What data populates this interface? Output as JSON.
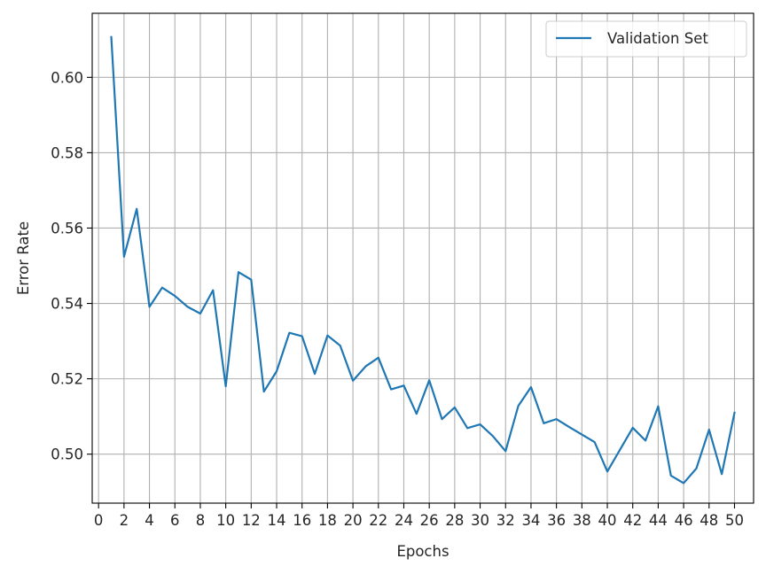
{
  "chart_data": {
    "type": "line",
    "xlabel": "Epochs",
    "ylabel": "Error Rate",
    "xlim": [
      -0.5,
      51.5
    ],
    "ylim": [
      0.487,
      0.617
    ],
    "xticks": [
      0,
      2,
      4,
      6,
      8,
      10,
      12,
      14,
      16,
      18,
      20,
      22,
      24,
      26,
      28,
      30,
      32,
      34,
      36,
      38,
      40,
      42,
      44,
      46,
      48,
      50
    ],
    "yticks": [
      0.5,
      0.52,
      0.54,
      0.56,
      0.58,
      0.6
    ],
    "ytick_labels": [
      "0.50",
      "0.52",
      "0.54",
      "0.56",
      "0.58",
      "0.60"
    ],
    "grid": true,
    "legend": {
      "placement": "top-right"
    },
    "series": [
      {
        "name": "Validation Set",
        "color": "#1f77b4",
        "x": [
          1,
          2,
          3,
          4,
          5,
          6,
          7,
          8,
          9,
          10,
          11,
          12,
          13,
          14,
          15,
          16,
          17,
          18,
          19,
          20,
          21,
          22,
          23,
          24,
          25,
          26,
          27,
          28,
          29,
          30,
          31,
          32,
          33,
          34,
          35,
          36,
          37,
          38,
          39,
          40,
          41,
          42,
          43,
          44,
          45,
          46,
          47,
          48,
          49,
          50
        ],
        "y": [
          0.6107,
          0.5524,
          0.5651,
          0.5391,
          0.5442,
          0.542,
          0.5391,
          0.5373,
          0.5435,
          0.518,
          0.5483,
          0.5463,
          0.5166,
          0.522,
          0.5322,
          0.5313,
          0.5213,
          0.5315,
          0.5288,
          0.5195,
          0.5233,
          0.5256,
          0.5172,
          0.5182,
          0.5107,
          0.5196,
          0.5093,
          0.5124,
          0.5069,
          0.5079,
          0.5048,
          0.5008,
          0.5128,
          0.5178,
          0.5082,
          0.5093,
          0.5072,
          0.5052,
          0.5032,
          0.4954,
          0.5012,
          0.507,
          0.5036,
          0.5127,
          0.4943,
          0.4923,
          0.4962,
          0.5065,
          0.4947,
          0.511
        ]
      }
    ]
  }
}
